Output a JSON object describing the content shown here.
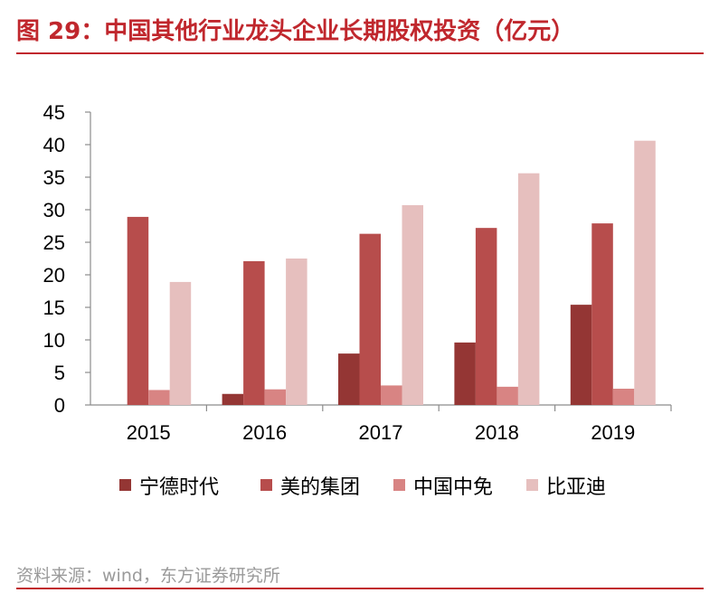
{
  "header": {
    "title": "图 29：中国其他行业龙头企业长期股权投资（亿元）"
  },
  "footer": {
    "source": "资料来源：wind，东方证券研究所"
  },
  "chart_data": {
    "type": "bar",
    "title": "",
    "xlabel": "",
    "ylabel": "",
    "categories": [
      "2015",
      "2016",
      "2017",
      "2018",
      "2019"
    ],
    "series": [
      {
        "name": "宁德时代",
        "color": "#943634",
        "values": [
          0,
          1.7,
          7.9,
          9.6,
          15.4
        ]
      },
      {
        "name": "美的集团",
        "color": "#b74d4c",
        "values": [
          28.9,
          22.1,
          26.3,
          27.2,
          27.9
        ]
      },
      {
        "name": "中国中免",
        "color": "#d88483",
        "values": [
          2.3,
          2.4,
          3.0,
          2.8,
          2.5
        ]
      },
      {
        "name": "比亚迪",
        "color": "#e6bfbe",
        "values": [
          18.9,
          22.5,
          30.7,
          35.6,
          40.6
        ]
      }
    ],
    "ylim": [
      0,
      45
    ],
    "yticks": [
      0,
      5,
      10,
      15,
      20,
      25,
      30,
      35,
      40,
      45
    ],
    "grid": false,
    "legend_position": "bottom"
  }
}
